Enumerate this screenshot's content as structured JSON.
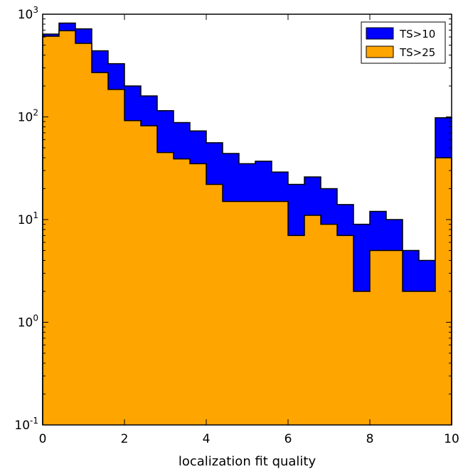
{
  "chart_data": {
    "type": "histogram",
    "title": "",
    "xlabel": "localization fit quality",
    "ylabel": "",
    "xlim": [
      0,
      10
    ],
    "ylim": [
      0.1,
      1000
    ],
    "yscale": "log",
    "bin_width": 0.4,
    "bin_start": 0,
    "x_ticks": [
      "0",
      "2",
      "4",
      "6",
      "8",
      "10"
    ],
    "y_ticks": [
      {
        "base": "10",
        "exp": "-1"
      },
      {
        "base": "10",
        "exp": "0"
      },
      {
        "base": "10",
        "exp": "1"
      },
      {
        "base": "10",
        "exp": "2"
      },
      {
        "base": "10",
        "exp": "3"
      }
    ],
    "legend_position": "top-right",
    "series": [
      {
        "name": "TS>10",
        "color": "#0000ff",
        "values": [
          640,
          820,
          720,
          440,
          330,
          200,
          160,
          115,
          88,
          73,
          56,
          44,
          35,
          37,
          29,
          22,
          26,
          20,
          14,
          9,
          12,
          10,
          5,
          4,
          98
        ]
      },
      {
        "name": "TS>25",
        "color": "#ffa500",
        "values": [
          610,
          690,
          520,
          270,
          185,
          92,
          82,
          45,
          39,
          35,
          22,
          15,
          15,
          15,
          15,
          7,
          11,
          9,
          7,
          2,
          5,
          5,
          2,
          2,
          40
        ]
      }
    ]
  }
}
